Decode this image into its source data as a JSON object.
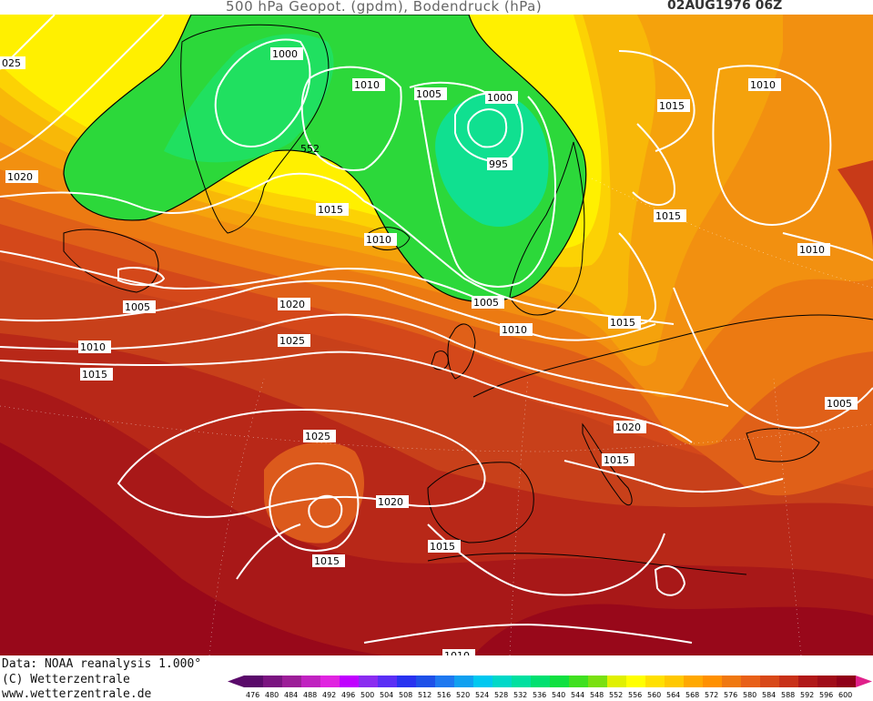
{
  "header": {
    "title": "500 hPa Geopot. (gpdm), Bodendruck (hPa)",
    "datetime": "02AUG1976 06Z"
  },
  "map": {
    "geopotential_label": "552",
    "pressure_labels": [
      {
        "id": "isobar-1025-west",
        "text": "025"
      },
      {
        "id": "isobar-1000-greenland",
        "text": "1000"
      },
      {
        "id": "isobar-1010-iceland",
        "text": "1010"
      },
      {
        "id": "isobar-1005-iceland",
        "text": "1005"
      },
      {
        "id": "isobar-1000-norway",
        "text": "1000"
      },
      {
        "id": "isobar-995-low",
        "text": "995"
      },
      {
        "id": "isobar-1015-north",
        "text": "1015"
      },
      {
        "id": "isobar-1010-east",
        "text": "1010"
      },
      {
        "id": "isobar-1020-west",
        "text": "1020"
      },
      {
        "id": "isobar-1015-scand",
        "text": "1015"
      },
      {
        "id": "isobar-1015-greenland",
        "text": "1015"
      },
      {
        "id": "isobar-1010-greenland",
        "text": "1010"
      },
      {
        "id": "isobar-1010-russia",
        "text": "1010"
      },
      {
        "id": "isobar-1005-newfoundland",
        "text": "1005"
      },
      {
        "id": "isobar-1005-northsea",
        "text": "1005"
      },
      {
        "id": "isobar-1020-atlantic",
        "text": "1020"
      },
      {
        "id": "isobar-1010-britain",
        "text": "1010"
      },
      {
        "id": "isobar-1015-poland",
        "text": "1015"
      },
      {
        "id": "isobar-1010-atlantic",
        "text": "1010"
      },
      {
        "id": "isobar-1025-atlantic",
        "text": "1025"
      },
      {
        "id": "isobar-1015-atlantic",
        "text": "1015"
      },
      {
        "id": "isobar-1005-ukraine",
        "text": "1005"
      },
      {
        "id": "isobar-1020-alps",
        "text": "1020"
      },
      {
        "id": "isobar-1025-azores",
        "text": "1025"
      },
      {
        "id": "isobar-1015-italy",
        "text": "1015"
      },
      {
        "id": "isobar-1020-iberia",
        "text": "1020"
      },
      {
        "id": "isobar-1015-azores",
        "text": "1015"
      },
      {
        "id": "isobar-1015-africa",
        "text": "1015"
      },
      {
        "id": "isobar-1010-sahara",
        "text": "1010"
      }
    ]
  },
  "footer": {
    "source": "Data: NOAA reanalysis 1.000°",
    "copyright": "(C) Wetterzentrale",
    "url": "www.wetterzentrale.de"
  },
  "scale": {
    "values": [
      "476",
      "480",
      "484",
      "488",
      "492",
      "496",
      "500",
      "504",
      "508",
      "512",
      "516",
      "520",
      "524",
      "528",
      "532",
      "536",
      "540",
      "544",
      "548",
      "552",
      "556",
      "560",
      "564",
      "568",
      "572",
      "576",
      "580",
      "584",
      "588",
      "592",
      "596",
      "600"
    ],
    "colors": [
      "#5a0a6a",
      "#7a1480",
      "#9c1e98",
      "#c022c0",
      "#e024e0",
      "#c000ff",
      "#8a2cf0",
      "#5a2ef5",
      "#2832f0",
      "#1e50e8",
      "#1e78f0",
      "#10a0f0",
      "#00c8f0",
      "#00d8c8",
      "#00e0a0",
      "#00e070",
      "#10e040",
      "#40e020",
      "#7ae010",
      "#e0f000",
      "#ffff00",
      "#ffe000",
      "#ffc800",
      "#ffa800",
      "#ff9000",
      "#f07810",
      "#e86018",
      "#d84818",
      "#c83018",
      "#b01818",
      "#a00c18",
      "#900018"
    ],
    "left_arrow_color": "#5a0a6a",
    "right_arrow_color": "#e0208a"
  }
}
